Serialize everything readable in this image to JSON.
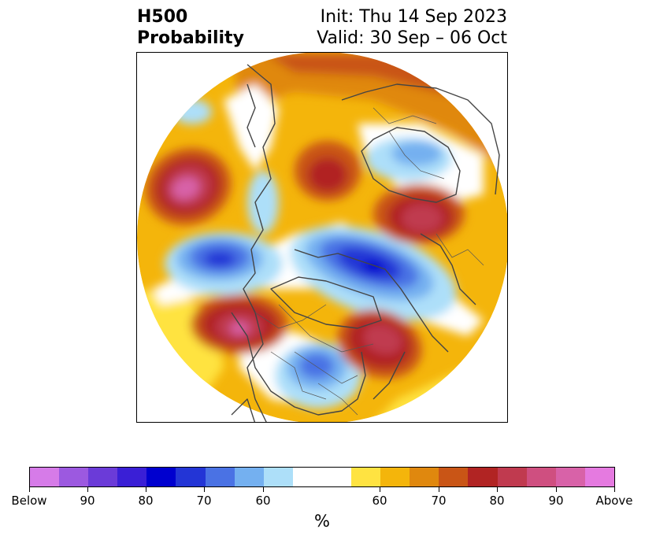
{
  "title": {
    "left_line1": "H500",
    "left_line2": "Probability",
    "right_line1": "Init: Thu 14 Sep 2023",
    "right_line2": "Valid: 30 Sep – 06 Oct"
  },
  "colorbar": {
    "unit": "%",
    "colors": [
      "#d67be8",
      "#9c59e0",
      "#6b3bd8",
      "#3a1fd6",
      "#0000cf",
      "#2335d6",
      "#4a72e4",
      "#74b0f0",
      "#addff9",
      "#ffffff",
      "#ffe341",
      "#f4b50b",
      "#e0880e",
      "#c95516",
      "#b12423",
      "#c03a4f",
      "#cf4f80",
      "#d862a8",
      "#e57ae0"
    ],
    "tick_labels": [
      "Below",
      "90",
      "80",
      "70",
      "60",
      "60",
      "70",
      "80",
      "90",
      "Above"
    ]
  },
  "legend_palette": {
    "above_high": "#d85fa0",
    "above_mid": "#b12423",
    "above_low": "#f4b50b",
    "below_high": "#0000cf",
    "below_mid": "#4a72e4",
    "below_low": "#addff9",
    "coast": "#444444"
  }
}
